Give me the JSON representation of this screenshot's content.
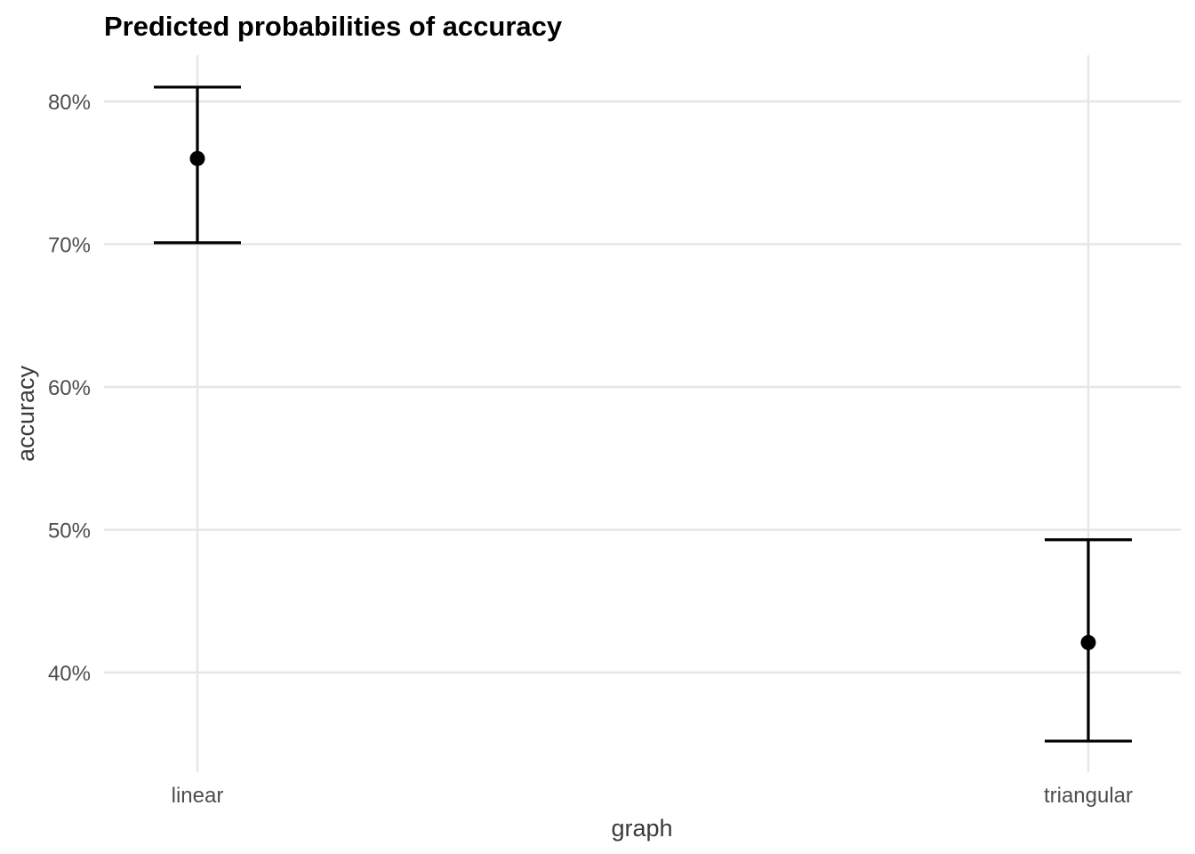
{
  "chart_data": {
    "type": "pointrange",
    "title": "Predicted probabilities of accuracy",
    "xlabel": "graph",
    "ylabel": "accuracy",
    "categories": [
      "linear",
      "triangular"
    ],
    "values": [
      0.76,
      0.421
    ],
    "lower": [
      0.701,
      0.352
    ],
    "upper": [
      0.81,
      0.493
    ],
    "y_ticks": [
      0.4,
      0.5,
      0.6,
      0.7,
      0.8
    ],
    "y_tick_labels": [
      "40%",
      "50%",
      "60%",
      "70%",
      "80%"
    ],
    "ylim": [
      0.33,
      0.83
    ],
    "grid": true,
    "legend": "none",
    "colors": {
      "marks": "#000000",
      "grid": "#e6e6e6",
      "background": "#ffffff"
    }
  }
}
